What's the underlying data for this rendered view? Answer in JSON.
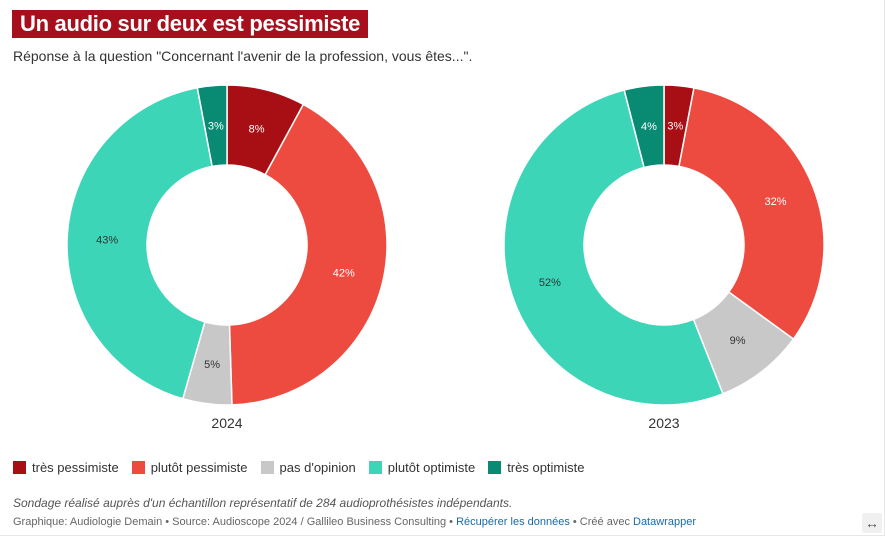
{
  "title": "Un audio sur deux est pessimiste",
  "subtitle": "Réponse à la question \"Concernant l'avenir de la profession, vous êtes...\".",
  "chart_data": {
    "type": "pie",
    "variant": "donut",
    "categories": [
      "très pessimiste",
      "plutôt pessimiste",
      "pas d'opinion",
      "plutôt optimiste",
      "très optimiste"
    ],
    "colors": [
      "#a80f14",
      "#ee4b40",
      "#c8c8c8",
      "#3dd5b8",
      "#098a73"
    ],
    "label_colors": [
      "#ffffff",
      "#ffffff",
      "#333333",
      "#333333",
      "#ffffff"
    ],
    "series": [
      {
        "name": "2024",
        "values": [
          8,
          42,
          5,
          43,
          3
        ],
        "labels": [
          "8%",
          "42%",
          "5%",
          "43%",
          "3%"
        ]
      },
      {
        "name": "2023",
        "values": [
          3,
          32,
          9,
          52,
          4
        ],
        "labels": [
          "3%",
          "32%",
          "9%",
          "52%",
          "4%"
        ]
      }
    ]
  },
  "note": "Sondage réalisé auprès d'un échantillon représentatif de 284 audioprothésistes indépendants.",
  "footer": {
    "prefix": "Graphique: Audiologie Demain • Source: Audioscope 2024 / Gallileo Business Consulting • ",
    "link_data": "Récupérer les données",
    "middle": " • Créé avec ",
    "link_tool": "Datawrapper"
  },
  "icons": {
    "resize": "resize-icon"
  }
}
